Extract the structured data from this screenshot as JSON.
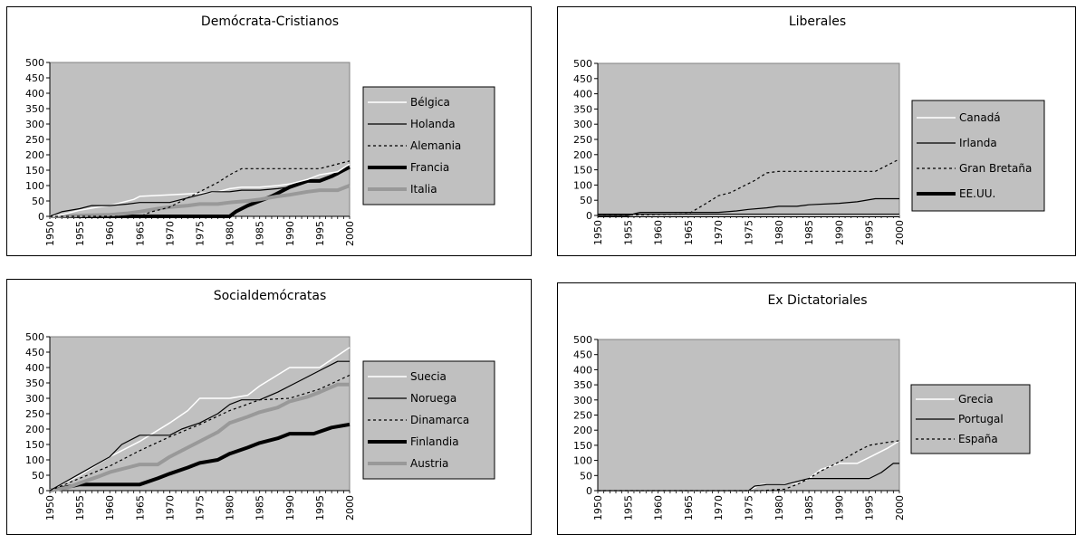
{
  "chart_data": [
    {
      "type": "line",
      "title": "Demócrata-Cristianos",
      "xlabel": "",
      "ylabel": "",
      "xlim": [
        1950,
        2000
      ],
      "ylim": [
        0,
        500
      ],
      "yticks": [
        "0",
        "50",
        "100",
        "150",
        "200",
        "250",
        "300",
        "350",
        "400",
        "450",
        "500"
      ],
      "xticks": [
        "1950",
        "1955",
        "1960",
        "1965",
        "1970",
        "1975",
        "1980",
        "1985",
        "1990",
        "1995",
        "2000"
      ],
      "grid": false,
      "legend_position": "right",
      "series": [
        {
          "name": "Bélgica",
          "color": "#ffffff",
          "style": "solid",
          "weight": "thin",
          "x": [
            1950,
            1952,
            1955,
            1958,
            1960,
            1962,
            1964,
            1965,
            1970,
            1975,
            1978,
            1980,
            1982,
            1985,
            1988,
            1990,
            1993,
            1995,
            1998,
            2000
          ],
          "y": [
            0,
            5,
            20,
            30,
            35,
            45,
            55,
            65,
            70,
            75,
            80,
            90,
            95,
            95,
            100,
            105,
            120,
            135,
            145,
            170
          ]
        },
        {
          "name": "Holanda",
          "color": "#000000",
          "style": "solid",
          "weight": "thin",
          "x": [
            1950,
            1952,
            1955,
            1957,
            1960,
            1963,
            1965,
            1970,
            1972,
            1975,
            1977,
            1980,
            1982,
            1985,
            1988,
            1990,
            1992,
            1994,
            1996,
            1998,
            2000
          ],
          "y": [
            0,
            15,
            25,
            35,
            35,
            40,
            45,
            45,
            55,
            70,
            80,
            80,
            85,
            85,
            90,
            95,
            110,
            115,
            120,
            135,
            160
          ]
        },
        {
          "name": "Alemania",
          "color": "#000000",
          "style": "dashed",
          "weight": "thin",
          "x": [
            1950,
            1965,
            1967,
            1970,
            1973,
            1975,
            1978,
            1980,
            1982,
            1985,
            1990,
            1995,
            2000
          ],
          "y": [
            0,
            0,
            15,
            30,
            60,
            80,
            110,
            135,
            155,
            155,
            155,
            155,
            180
          ]
        },
        {
          "name": "Francia",
          "color": "#000000",
          "style": "solid",
          "weight": "thick",
          "x": [
            1950,
            1980,
            1981,
            1983,
            1985,
            1987,
            1990,
            1993,
            1995,
            1997,
            2000
          ],
          "y": [
            0,
            0,
            15,
            35,
            50,
            65,
            95,
            115,
            115,
            130,
            160
          ]
        },
        {
          "name": "Italia",
          "color": "#999999",
          "style": "solid",
          "weight": "thick",
          "x": [
            1950,
            1960,
            1963,
            1965,
            1968,
            1970,
            1973,
            1975,
            1978,
            1980,
            1983,
            1985,
            1988,
            1990,
            1993,
            1995,
            1998,
            2000
          ],
          "y": [
            0,
            5,
            10,
            15,
            25,
            30,
            35,
            40,
            40,
            45,
            50,
            55,
            65,
            70,
            80,
            85,
            85,
            100
          ]
        }
      ]
    },
    {
      "type": "line",
      "title": "Liberales",
      "xlabel": "",
      "ylabel": "",
      "xlim": [
        1950,
        2000
      ],
      "ylim": [
        0,
        500
      ],
      "yticks": [
        "0",
        "50",
        "100",
        "150",
        "200",
        "250",
        "300",
        "350",
        "400",
        "450",
        "500"
      ],
      "xticks": [
        "1950",
        "1955",
        "1960",
        "1965",
        "1970",
        "1975",
        "1980",
        "1985",
        "1990",
        "1995",
        "2000"
      ],
      "grid": false,
      "legend_position": "right",
      "series": [
        {
          "name": "Canadá",
          "color": "#ffffff",
          "style": "solid",
          "weight": "thin",
          "x": [
            1950,
            2000
          ],
          "y": [
            0,
            0
          ]
        },
        {
          "name": "Irlanda",
          "color": "#000000",
          "style": "solid",
          "weight": "thin",
          "x": [
            1950,
            1955,
            1957,
            1960,
            1965,
            1970,
            1973,
            1975,
            1978,
            1980,
            1983,
            1985,
            1990,
            1993,
            1996,
            2000
          ],
          "y": [
            0,
            0,
            10,
            10,
            10,
            10,
            15,
            20,
            25,
            30,
            30,
            35,
            40,
            45,
            55,
            55
          ]
        },
        {
          "name": "Gran Bretaña",
          "color": "#000000",
          "style": "dashed",
          "weight": "thin",
          "x": [
            1950,
            1965,
            1968,
            1970,
            1972,
            1974,
            1976,
            1978,
            1980,
            1985,
            1990,
            1996,
            2000
          ],
          "y": [
            0,
            5,
            40,
            65,
            75,
            95,
            115,
            140,
            145,
            145,
            145,
            145,
            185
          ]
        },
        {
          "name": "EE.UU.",
          "color": "#000000",
          "style": "solid",
          "weight": "thick",
          "x": [
            1950,
            2000
          ],
          "y": [
            0,
            0
          ]
        }
      ]
    },
    {
      "type": "line",
      "title": "Socialdemócratas",
      "xlabel": "",
      "ylabel": "",
      "xlim": [
        1950,
        2000
      ],
      "ylim": [
        0,
        500
      ],
      "yticks": [
        "0",
        "50",
        "100",
        "150",
        "200",
        "250",
        "300",
        "350",
        "400",
        "450",
        "500"
      ],
      "xticks": [
        "1950",
        "1955",
        "1960",
        "1965",
        "1970",
        "1975",
        "1980",
        "1985",
        "1990",
        "1995",
        "2000"
      ],
      "grid": false,
      "legend_position": "right",
      "series": [
        {
          "name": "Suecia",
          "color": "#ffffff",
          "style": "solid",
          "weight": "thin",
          "x": [
            1950,
            1955,
            1960,
            1965,
            1970,
            1973,
            1975,
            1978,
            1980,
            1983,
            1985,
            1990,
            1995,
            2000
          ],
          "y": [
            0,
            50,
            110,
            160,
            220,
            260,
            300,
            300,
            300,
            310,
            340,
            400,
            400,
            465
          ]
        },
        {
          "name": "Noruega",
          "color": "#000000",
          "style": "solid",
          "weight": "thin",
          "x": [
            1950,
            1955,
            1960,
            1962,
            1965,
            1968,
            1970,
            1972,
            1975,
            1978,
            1980,
            1982,
            1985,
            1988,
            1990,
            1992,
            1995,
            1998,
            2000
          ],
          "y": [
            0,
            55,
            110,
            150,
            180,
            180,
            180,
            200,
            220,
            250,
            280,
            295,
            295,
            320,
            340,
            360,
            390,
            420,
            420
          ]
        },
        {
          "name": "Dinamarca",
          "color": "#000000",
          "style": "dashed",
          "weight": "thin",
          "x": [
            1950,
            1955,
            1960,
            1965,
            1970,
            1975,
            1980,
            1985,
            1990,
            1995,
            2000
          ],
          "y": [
            0,
            40,
            80,
            130,
            175,
            215,
            260,
            295,
            300,
            330,
            375
          ]
        },
        {
          "name": "Finlandia",
          "color": "#000000",
          "style": "solid",
          "weight": "thick",
          "x": [
            1950,
            1955,
            1965,
            1968,
            1970,
            1973,
            1975,
            1978,
            1980,
            1983,
            1985,
            1988,
            1990,
            1994,
            1997,
            2000
          ],
          "y": [
            0,
            20,
            20,
            40,
            55,
            75,
            90,
            100,
            120,
            140,
            155,
            170,
            185,
            185,
            205,
            215
          ]
        },
        {
          "name": "Austria",
          "color": "#999999",
          "style": "solid",
          "weight": "thick",
          "x": [
            1950,
            1953,
            1955,
            1958,
            1960,
            1963,
            1965,
            1968,
            1970,
            1973,
            1975,
            1978,
            1980,
            1983,
            1985,
            1988,
            1990,
            1993,
            1995,
            1998,
            2000
          ],
          "y": [
            0,
            10,
            25,
            45,
            60,
            75,
            85,
            85,
            110,
            140,
            160,
            190,
            220,
            240,
            255,
            270,
            290,
            305,
            320,
            345,
            345
          ]
        }
      ]
    },
    {
      "type": "line",
      "title": "Ex Dictatoriales",
      "xlabel": "",
      "ylabel": "",
      "xlim": [
        1950,
        2000
      ],
      "ylim": [
        0,
        500
      ],
      "yticks": [
        "0",
        "50",
        "100",
        "150",
        "200",
        "250",
        "300",
        "350",
        "400",
        "450",
        "500"
      ],
      "xticks": [
        "1950",
        "1955",
        "1960",
        "1965",
        "1970",
        "1975",
        "1980",
        "1985",
        "1990",
        "1995",
        "2000"
      ],
      "grid": false,
      "legend_position": "right",
      "series": [
        {
          "name": "Grecia",
          "color": "#ffffff",
          "style": "solid",
          "weight": "thin",
          "x": [
            1950,
            1975,
            1977,
            1980,
            1983,
            1985,
            1987,
            1990,
            1993,
            1995,
            1998,
            2000
          ],
          "y": [
            0,
            0,
            20,
            20,
            25,
            40,
            70,
            90,
            90,
            110,
            140,
            165
          ]
        },
        {
          "name": "Portugal",
          "color": "#000000",
          "style": "solid",
          "weight": "thin",
          "x": [
            1950,
            1975,
            1976,
            1978,
            1981,
            1983,
            1985,
            1990,
            1995,
            1997,
            1999,
            2000
          ],
          "y": [
            0,
            0,
            15,
            20,
            20,
            30,
            40,
            40,
            40,
            60,
            90,
            90
          ]
        },
        {
          "name": "España",
          "color": "#000000",
          "style": "dashed",
          "weight": "thin",
          "x": [
            1950,
            1977,
            1981,
            1983,
            1985,
            1987,
            1990,
            1993,
            1995,
            1998,
            2000
          ],
          "y": [
            0,
            0,
            5,
            20,
            40,
            65,
            95,
            130,
            150,
            160,
            165
          ]
        }
      ]
    }
  ]
}
